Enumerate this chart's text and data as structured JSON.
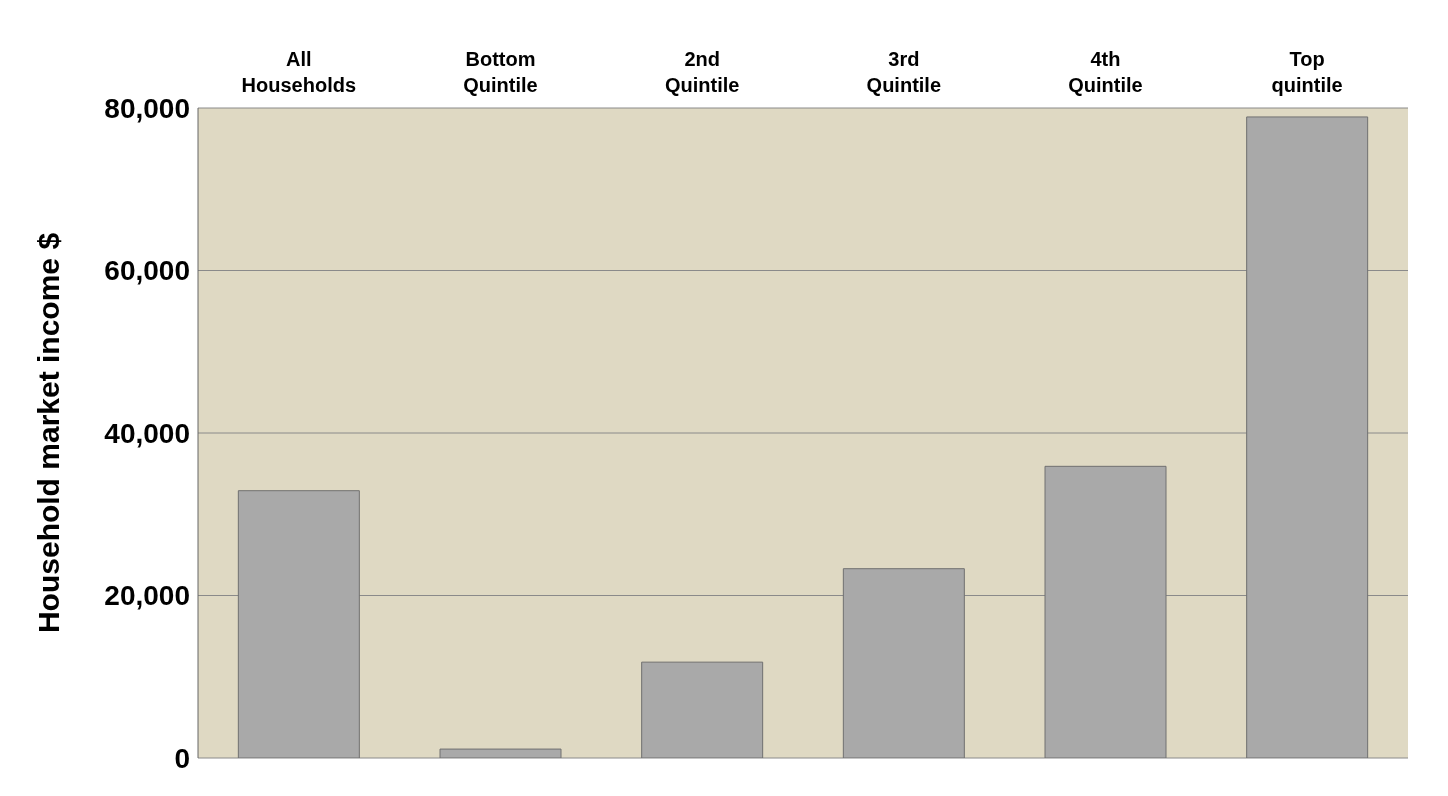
{
  "chart_data": {
    "type": "bar",
    "ylabel": "Household market income  $",
    "categories": [
      "All Households",
      "Bottom Quintile",
      "2nd Quintile",
      "3rd Quintile",
      "4th Quintile",
      "Top quintile"
    ],
    "values": [
      32900,
      1100,
      11800,
      23300,
      35900,
      78900
    ],
    "color": "#a9a9a9",
    "ylim": [
      0,
      80000
    ],
    "yticks": [
      0,
      {
        "value": 20000,
        "label": "20,000"
      },
      {
        "value": 40000,
        "label": "40,000"
      },
      {
        "value": 60000,
        "label": "60,000"
      },
      {
        "value": 80000,
        "label": "80,000"
      }
    ],
    "grid": "y"
  }
}
